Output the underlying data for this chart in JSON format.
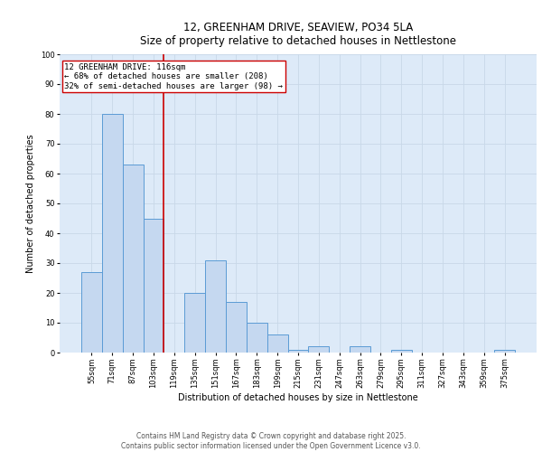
{
  "title_line1": "12, GREENHAM DRIVE, SEAVIEW, PO34 5LA",
  "title_line2": "Size of property relative to detached houses in Nettlestone",
  "xlabel": "Distribution of detached houses by size in Nettlestone",
  "ylabel": "Number of detached properties",
  "categories": [
    "55sqm",
    "71sqm",
    "87sqm",
    "103sqm",
    "119sqm",
    "135sqm",
    "151sqm",
    "167sqm",
    "183sqm",
    "199sqm",
    "215sqm",
    "231sqm",
    "247sqm",
    "263sqm",
    "279sqm",
    "295sqm",
    "311sqm",
    "327sqm",
    "343sqm",
    "359sqm",
    "375sqm"
  ],
  "values": [
    27,
    80,
    63,
    45,
    0,
    20,
    31,
    17,
    10,
    6,
    1,
    2,
    0,
    2,
    0,
    1,
    0,
    0,
    0,
    0,
    1
  ],
  "bar_color": "#c5d8f0",
  "bar_edge_color": "#5b9bd5",
  "vline_color": "#cc0000",
  "annotation_text": "12 GREENHAM DRIVE: 116sqm\n← 68% of detached houses are smaller (208)\n32% of semi-detached houses are larger (98) →",
  "annotation_box_color": "#ffffff",
  "annotation_box_edge_color": "#cc0000",
  "ylim": [
    0,
    100
  ],
  "yticks": [
    0,
    10,
    20,
    30,
    40,
    50,
    60,
    70,
    80,
    90,
    100
  ],
  "grid_color": "#c8d8e8",
  "background_color": "#ddeaf8",
  "footer_line1": "Contains HM Land Registry data © Crown copyright and database right 2025.",
  "footer_line2": "Contains public sector information licensed under the Open Government Licence v3.0.",
  "title_fontsize": 8.5,
  "label_fontsize": 7,
  "tick_fontsize": 6,
  "annotation_fontsize": 6.5,
  "footer_fontsize": 5.5
}
